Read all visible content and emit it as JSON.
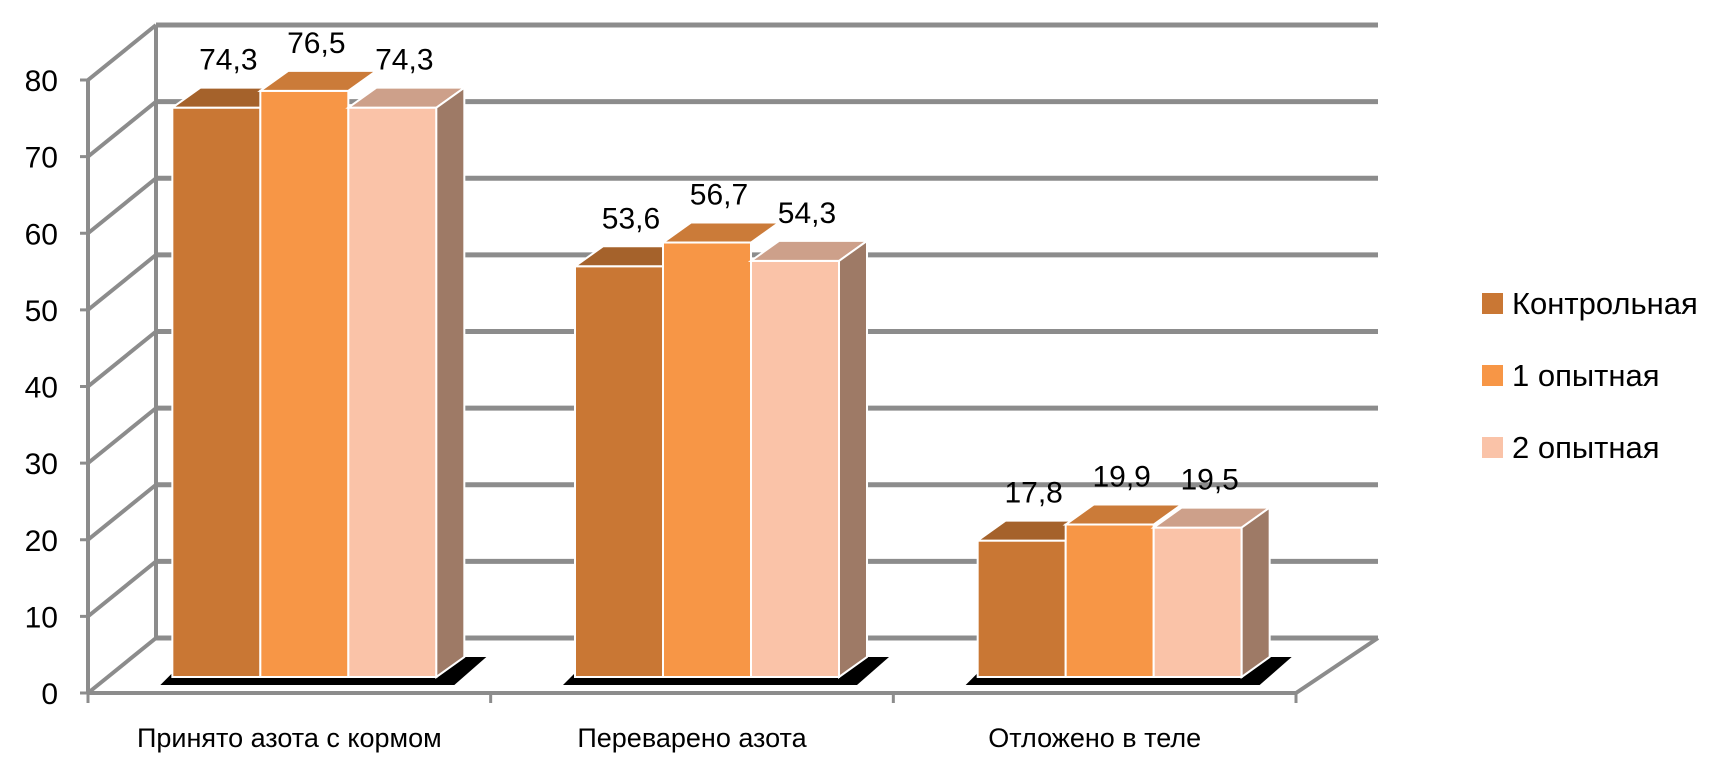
{
  "chart_data": {
    "type": "bar",
    "title": "",
    "xlabel": "",
    "ylabel": "",
    "ylim": [
      0,
      80
    ],
    "yticks": [
      "0",
      "10",
      "20",
      "30",
      "40",
      "50",
      "60",
      "70",
      "80"
    ],
    "grid": true,
    "legend_position": "right",
    "categories": [
      "Принято азота с кормом",
      "Переварено азота",
      "Отложено в теле"
    ],
    "series": [
      {
        "name": "Контрольная",
        "values": [
          74.3,
          53.6,
          17.8
        ],
        "labels": [
          "74,3",
          "53,6",
          "17,8"
        ],
        "color": "#C97734"
      },
      {
        "name": "1 опытная",
        "values": [
          76.5,
          56.7,
          19.9
        ],
        "labels": [
          "76,5",
          "56,7",
          "19,9"
        ],
        "color": "#F79646"
      },
      {
        "name": "2 опытная",
        "values": [
          74.3,
          54.3,
          19.5
        ],
        "labels": [
          "74,3",
          "54,3",
          "19,5"
        ],
        "color": "#FAC3A8"
      }
    ]
  }
}
